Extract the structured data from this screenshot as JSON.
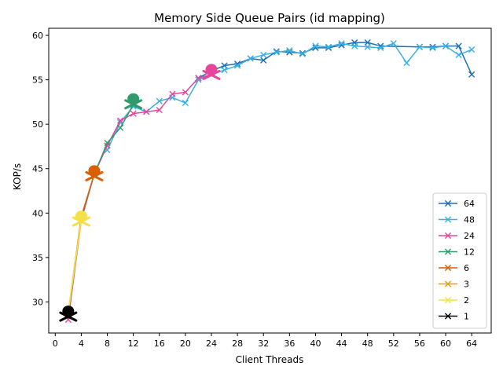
{
  "chart_data": {
    "type": "line",
    "title": "Memory Side Queue Pairs (id mapping)",
    "xlabel": "Client Threads",
    "ylabel": "KOP/s",
    "xlim": [
      -1,
      67
    ],
    "ylim": [
      26.5,
      60.8
    ],
    "xticks": [
      0,
      4,
      8,
      12,
      16,
      20,
      24,
      28,
      32,
      36,
      40,
      44,
      48,
      52,
      56,
      60,
      64
    ],
    "yticks": [
      30,
      35,
      40,
      45,
      50,
      55,
      60
    ],
    "grid": false,
    "legend_position": "lower-right",
    "series": [
      {
        "name": "64",
        "color": "#1f6fb4",
        "x": [
          22,
          24,
          26,
          28,
          30,
          32,
          34,
          36,
          38,
          40,
          42,
          44,
          46,
          48,
          50,
          56,
          58,
          60,
          62,
          64
        ],
        "y": [
          55.2,
          56.0,
          56.6,
          56.8,
          57.4,
          57.2,
          58.2,
          58.1,
          58.0,
          58.6,
          58.6,
          58.9,
          59.2,
          59.2,
          58.8,
          58.7,
          58.7,
          58.8,
          58.8,
          55.6
        ]
      },
      {
        "name": "48",
        "color": "#3ab0e2",
        "x": [
          8,
          10,
          12,
          14,
          16,
          18,
          20,
          22,
          24,
          26,
          28,
          30,
          32,
          34,
          36,
          38,
          40,
          42,
          44,
          46,
          48,
          50,
          52,
          54,
          56,
          58,
          60,
          62,
          64
        ],
        "y": [
          47.1,
          50.2,
          52.0,
          51.4,
          52.6,
          53.0,
          52.4,
          55.0,
          55.6,
          56.1,
          56.6,
          57.4,
          57.8,
          58.1,
          58.3,
          57.9,
          58.8,
          58.7,
          59.1,
          58.8,
          58.7,
          58.6,
          59.1,
          56.9,
          58.7,
          58.6,
          58.8,
          57.8,
          58.4
        ]
      },
      {
        "name": "24",
        "color": "#e6459e",
        "x": [
          2,
          4,
          6,
          8,
          10,
          12,
          14,
          16,
          18,
          20,
          22,
          24
        ],
        "y": [
          28.0,
          39.2,
          44.4,
          47.6,
          50.4,
          51.2,
          51.4,
          51.6,
          53.4,
          53.6,
          55.2,
          55.6
        ]
      },
      {
        "name": "12",
        "color": "#2f9b6c",
        "x": [
          2,
          4,
          6,
          8,
          10,
          12
        ],
        "y": [
          28.4,
          39.4,
          44.4,
          47.9,
          49.6,
          52.2
        ]
      },
      {
        "name": "6",
        "color": "#d95f02",
        "x": [
          2,
          4,
          6
        ],
        "y": [
          28.6,
          39.6,
          44.4
        ]
      },
      {
        "name": "3",
        "color": "#e6a000",
        "x": [
          2,
          4
        ],
        "y": [
          28.8,
          39.6
        ]
      },
      {
        "name": "2",
        "color": "#f0e442",
        "x": [
          2,
          4
        ],
        "y": [
          28.8,
          39.2
        ]
      },
      {
        "name": "1",
        "color": "#000000",
        "x": [
          2
        ],
        "y": [
          28.6
        ]
      }
    ],
    "skull_markers": [
      {
        "series": "1",
        "x": 2,
        "y": 28.7,
        "color": "#000000"
      },
      {
        "series": "2",
        "x": 4,
        "y": 39.4,
        "color": "#f5e04a"
      },
      {
        "series": "6",
        "x": 6,
        "y": 44.5,
        "color": "#d95f02"
      },
      {
        "series": "12",
        "x": 12,
        "y": 52.6,
        "color": "#2f9b6c"
      },
      {
        "series": "24",
        "x": 24,
        "y": 55.9,
        "color": "#e6459e"
      }
    ]
  }
}
